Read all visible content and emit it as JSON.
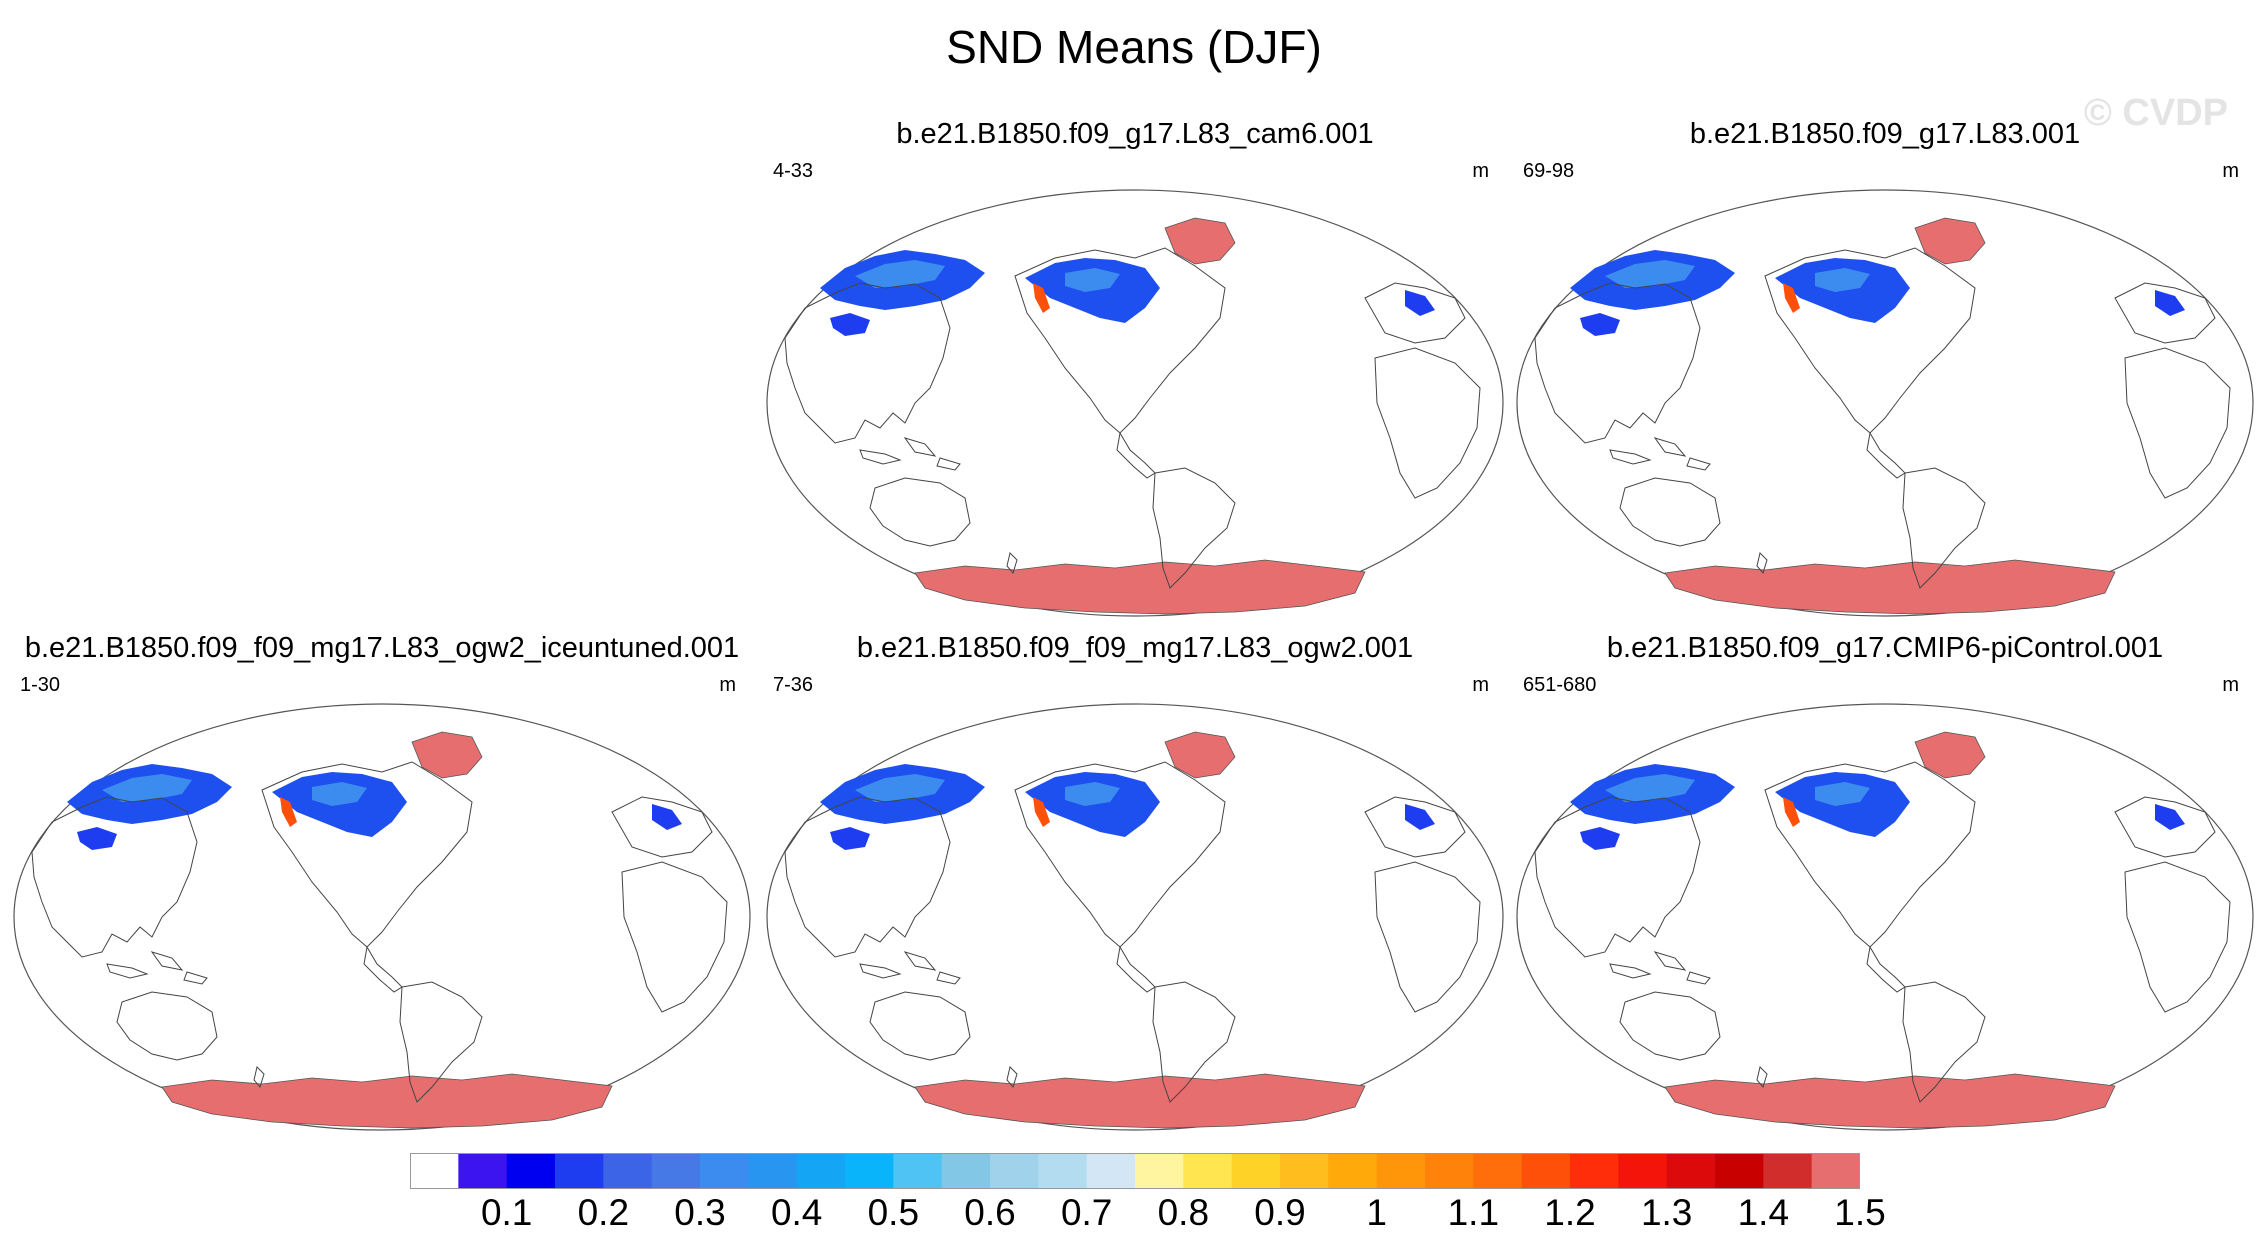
{
  "title": "SND Means (DJF)",
  "watermark": "© CVDP",
  "panels": [
    {
      "title": "b.e21.B1850.f09_g17.L83_cam6.001",
      "years": "4-33",
      "units": "m"
    },
    {
      "title": "b.e21.B1850.f09_g17.L83.001",
      "years": "69-98",
      "units": "m"
    },
    {
      "title": "b.e21.B1850.f09_f09_mg17.L83_ogw2_iceuntuned.001",
      "years": "1-30",
      "units": "m"
    },
    {
      "title": "b.e21.B1850.f09_f09_mg17.L83_ogw2.001",
      "years": "7-36",
      "units": "m"
    },
    {
      "title": "b.e21.B1850.f09_g17.CMIP6-piControl.001",
      "years": "651-680",
      "units": "m"
    }
  ],
  "colorbar": {
    "labels": [
      "0.1",
      "0.2",
      "0.3",
      "0.4",
      "0.5",
      "0.6",
      "0.7",
      "0.8",
      "0.9",
      "1",
      "1.1",
      "1.2",
      "1.3",
      "1.4",
      "1.5"
    ],
    "colors": [
      "#ffffff",
      "#3c14f0",
      "#0000f0",
      "#1e3cf0",
      "#3c64e6",
      "#4678e6",
      "#3c8cf0",
      "#2896f0",
      "#14a5f5",
      "#0ab4fa",
      "#50c3f5",
      "#82c8e6",
      "#a0d2eb",
      "#b4dcf0",
      "#d2e6f5",
      "#fff5a0",
      "#ffe650",
      "#ffd228",
      "#ffbe1e",
      "#ffaa0a",
      "#ff960a",
      "#ff820a",
      "#ff6e0a",
      "#ff500a",
      "#ff2d0a",
      "#f5140a",
      "#dc0a0a",
      "#c80000",
      "#d22d2d",
      "#e66e6e"
    ]
  }
}
